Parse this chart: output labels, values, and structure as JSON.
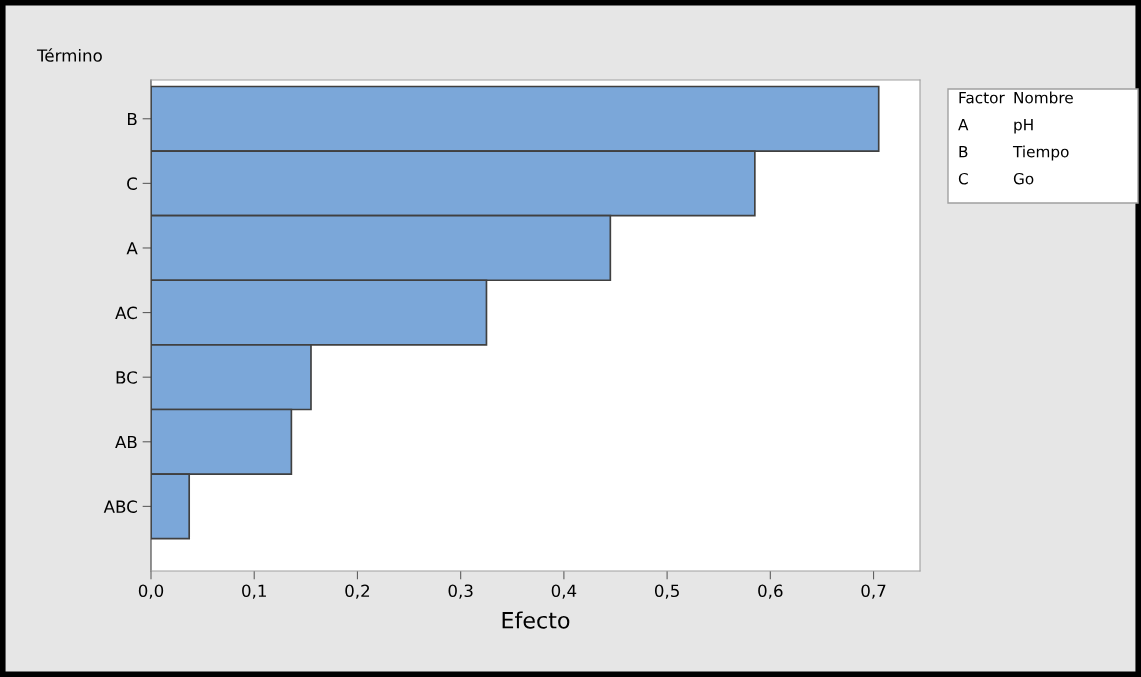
{
  "chart_data": {
    "type": "bar",
    "orientation": "horizontal",
    "ylabel": "Término",
    "xlabel": "Efecto",
    "categories": [
      "B",
      "C",
      "A",
      "AC",
      "BC",
      "AB",
      "ABC"
    ],
    "values": [
      0.705,
      0.585,
      0.445,
      0.325,
      0.155,
      0.136,
      0.037
    ],
    "color": "#7ba7d9",
    "xlim": [
      0,
      0.745
    ],
    "xticks": [
      {
        "value": 0,
        "label": "0,0"
      },
      {
        "value": 0.1,
        "label": "0,1"
      },
      {
        "value": 0.2,
        "label": "0,2"
      },
      {
        "value": 0.3,
        "label": "0,3"
      },
      {
        "value": 0.4,
        "label": "0,4"
      },
      {
        "value": 0.5,
        "label": "0,5"
      },
      {
        "value": 0.6,
        "label": "0,6"
      },
      {
        "value": 0.7,
        "label": "0,7"
      }
    ],
    "annotations": [
      "Factor",
      "Nombre",
      "A",
      "pH",
      "B",
      "Tiempo",
      "C",
      "Go"
    ],
    "grid": false,
    "legend": false
  }
}
